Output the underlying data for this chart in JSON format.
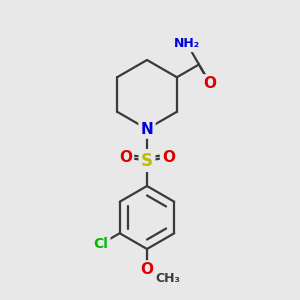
{
  "bg_color": "#e8e8e8",
  "bond_color": "#3a3a3a",
  "bond_width": 1.6,
  "atom_colors": {
    "N": "#0000dd",
    "O": "#dd0000",
    "S": "#bbbb00",
    "Cl": "#00bb00",
    "C": "#3a3a3a",
    "H": "#7a9a9a"
  },
  "figsize": [
    3.0,
    3.0
  ],
  "dpi": 100
}
